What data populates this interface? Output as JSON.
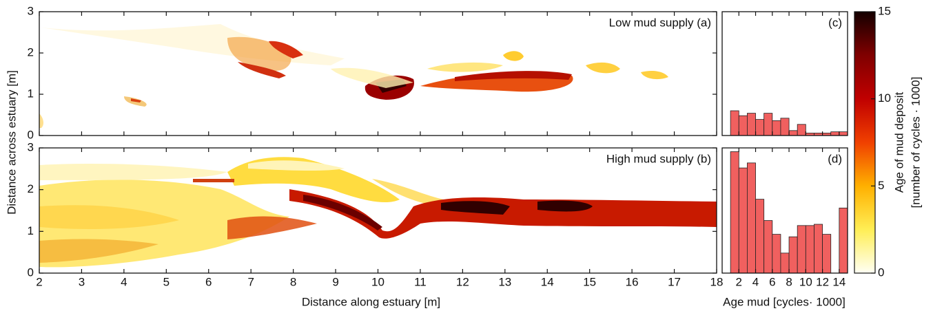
{
  "chart_data": [
    {
      "type": "heatmap",
      "annotation": "Low mud supply (a)",
      "ylabel": "Distance across estuary [m]",
      "xlim": [
        2,
        18
      ],
      "ylim": [
        0,
        3
      ],
      "yticks": [
        0,
        1,
        2,
        3
      ]
    },
    {
      "type": "heatmap",
      "annotation": "High mud supply (b)",
      "xlabel": "Distance along estuary [m]",
      "xlim": [
        2,
        18
      ],
      "ylim": [
        0,
        3
      ],
      "yticks": [
        0,
        1,
        2,
        3
      ],
      "xticks": [
        2,
        3,
        4,
        5,
        6,
        7,
        8,
        9,
        10,
        11,
        12,
        13,
        14,
        15,
        16,
        17,
        18
      ]
    },
    {
      "type": "histogram",
      "annotation": "(c)",
      "color": "#f0605f",
      "xlim": [
        0,
        15
      ],
      "ylim": [
        0,
        1
      ],
      "bins": [
        1,
        2,
        3,
        4,
        5,
        6,
        7,
        8,
        9,
        10,
        11,
        12,
        13,
        14,
        15
      ],
      "values": [
        0.2,
        0.16,
        0.18,
        0.13,
        0.18,
        0.12,
        0.14,
        0.04,
        0.09,
        0.02,
        0.02,
        0.02,
        0.03,
        0.03
      ]
    },
    {
      "type": "histogram",
      "annotation": "(d)",
      "color": "#f0605f",
      "xlim": [
        0,
        15
      ],
      "ylim": [
        0,
        1
      ],
      "xlabel": "Age mud [cycles· 1000]",
      "xticks": [
        2,
        4,
        6,
        8,
        10,
        12,
        14
      ],
      "bins": [
        1,
        2,
        3,
        4,
        5,
        6,
        7,
        8,
        9,
        10,
        11,
        12,
        13,
        14,
        15
      ],
      "values": [
        0.97,
        0.84,
        0.88,
        0.59,
        0.42,
        0.31,
        0.16,
        0.29,
        0.38,
        0.38,
        0.39,
        0.31,
        0,
        0.52
      ]
    },
    {
      "type": "colorbar",
      "ylim": [
        0,
        15
      ],
      "yticks": [
        0,
        5,
        10,
        15
      ],
      "label": [
        "Age of mud deposit",
        "[number of cycles · 1000]"
      ],
      "colormap": [
        "#fffff4",
        "#ffee55",
        "#ffb000",
        "#f04000",
        "#c00000",
        "#800000",
        "#140000"
      ]
    }
  ]
}
